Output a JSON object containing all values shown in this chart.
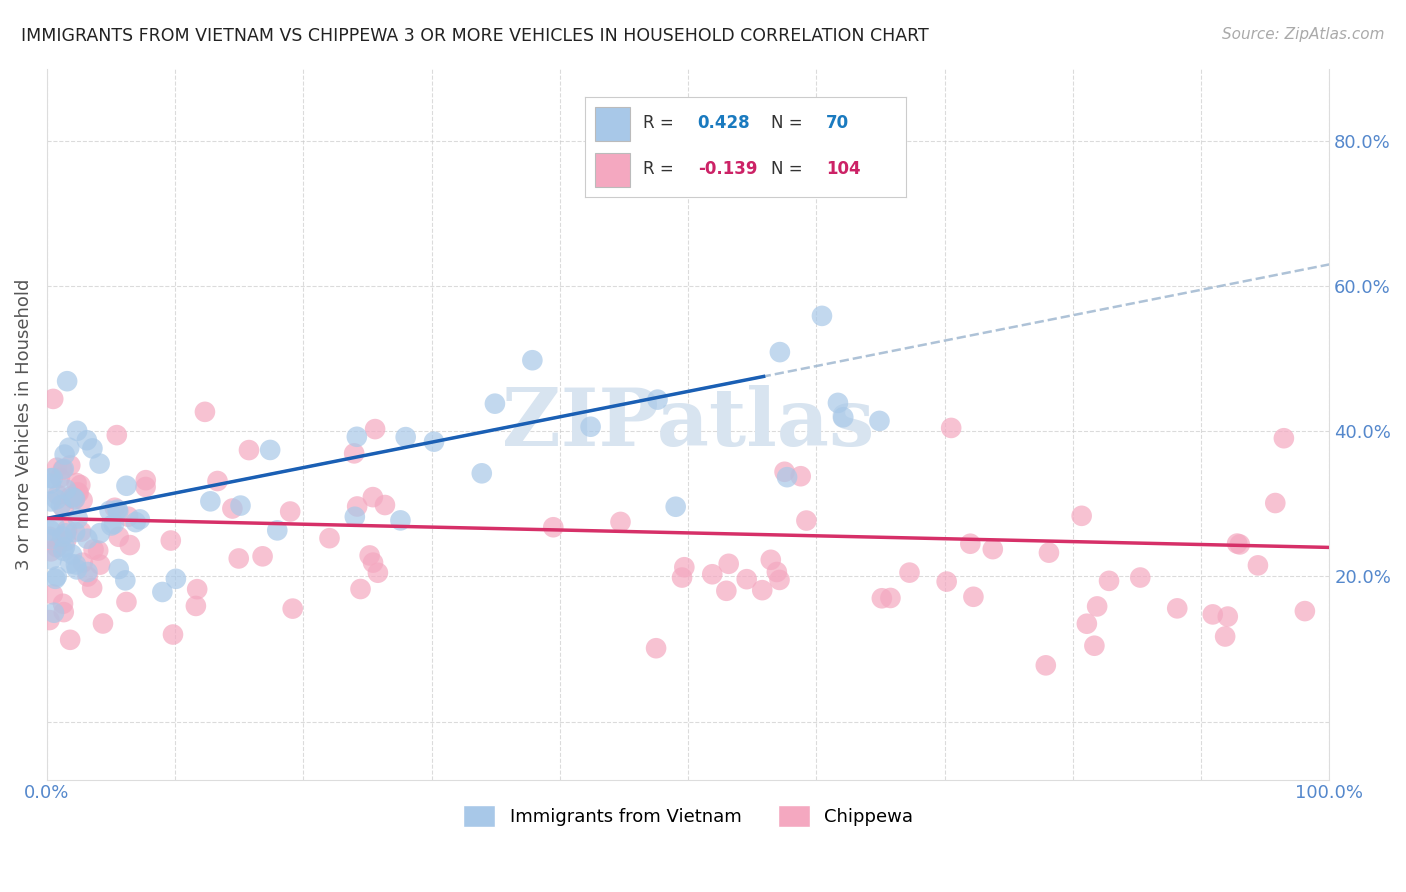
{
  "title": "IMMIGRANTS FROM VIETNAM VS CHIPPEWA 3 OR MORE VEHICLES IN HOUSEHOLD CORRELATION CHART",
  "source": "Source: ZipAtlas.com",
  "ylabel": "3 or more Vehicles in Household",
  "xlim": [
    0,
    100
  ],
  "ylim": [
    -8,
    90
  ],
  "legend_R1": "0.428",
  "legend_N1": "70",
  "legend_R2": "-0.139",
  "legend_N2": "104",
  "blue_scatter_color": "#a8c8e8",
  "pink_scatter_color": "#f4a8c0",
  "blue_line_color": "#1a5fb4",
  "pink_line_color": "#d63068",
  "dash_line_color": "#a0b8d0",
  "watermark_color": "#d8e4f0",
  "background_color": "#ffffff",
  "grid_color": "#cccccc",
  "title_color": "#222222",
  "source_color": "#aaaaaa",
  "label_color": "#555555",
  "tick_color": "#5588cc",
  "R_color_blue": "#1a7abf",
  "R_color_pink": "#cc2266"
}
